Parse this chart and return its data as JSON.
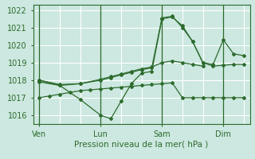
{
  "title": "",
  "xlabel": "Pression niveau de la mer( hPa )",
  "bg_color": "#cce8e0",
  "grid_color": "#ffffff",
  "line_color": "#2d6b2d",
  "ylim": [
    1015.5,
    1022.3
  ],
  "yticks": [
    1016,
    1017,
    1018,
    1019,
    1020,
    1021,
    1022
  ],
  "xtick_labels": [
    "Ven",
    "Lun",
    "Sam",
    "Dim"
  ],
  "xtick_positions": [
    0,
    30,
    60,
    90
  ],
  "xlim": [
    -3,
    103
  ],
  "num_points": 100,
  "series1_x": [
    0,
    5,
    10,
    15,
    20,
    25,
    30,
    35,
    40,
    45,
    50,
    55,
    60,
    65,
    70,
    75,
    80,
    85,
    90,
    95,
    100
  ],
  "series1_y": [
    1017.0,
    1017.1,
    1017.2,
    1017.3,
    1017.4,
    1017.45,
    1017.5,
    1017.55,
    1017.6,
    1017.65,
    1017.7,
    1017.75,
    1017.8,
    1017.85,
    1017.0,
    1017.0,
    1017.0,
    1017.0,
    1017.0,
    1017.0,
    1017.0
  ],
  "series2_x": [
    0,
    10,
    20,
    30,
    35,
    40,
    45,
    50,
    55,
    60,
    65,
    70,
    75,
    80,
    85,
    90,
    95,
    100
  ],
  "series2_y": [
    1017.9,
    1017.7,
    1016.9,
    1016.0,
    1015.8,
    1016.8,
    1017.8,
    1018.4,
    1018.5,
    1021.5,
    1021.6,
    1021.1,
    1020.2,
    1019.0,
    1018.8,
    1018.85,
    1018.9,
    1018.9
  ],
  "series3_x": [
    0,
    10,
    20,
    30,
    35,
    40,
    45,
    50,
    55,
    60,
    65,
    70,
    75,
    80,
    85,
    90,
    95,
    100
  ],
  "series3_y": [
    1018.0,
    1017.7,
    1017.8,
    1018.0,
    1018.15,
    1018.3,
    1018.45,
    1018.6,
    1018.7,
    1021.55,
    1021.65,
    1021.0,
    1020.2,
    1019.0,
    1018.9,
    1020.3,
    1019.5,
    1019.4
  ],
  "series4_x": [
    0,
    10,
    20,
    30,
    35,
    40,
    45,
    50,
    55,
    60,
    65,
    70,
    75,
    80
  ],
  "series4_y": [
    1018.0,
    1017.75,
    1017.8,
    1018.05,
    1018.2,
    1018.35,
    1018.5,
    1018.65,
    1018.75,
    1019.0,
    1019.1,
    1019.0,
    1018.9,
    1018.8
  ],
  "vline_positions": [
    0,
    30,
    60,
    90
  ],
  "minor_vlines": [
    10,
    20,
    40,
    50,
    70,
    80,
    100
  ]
}
